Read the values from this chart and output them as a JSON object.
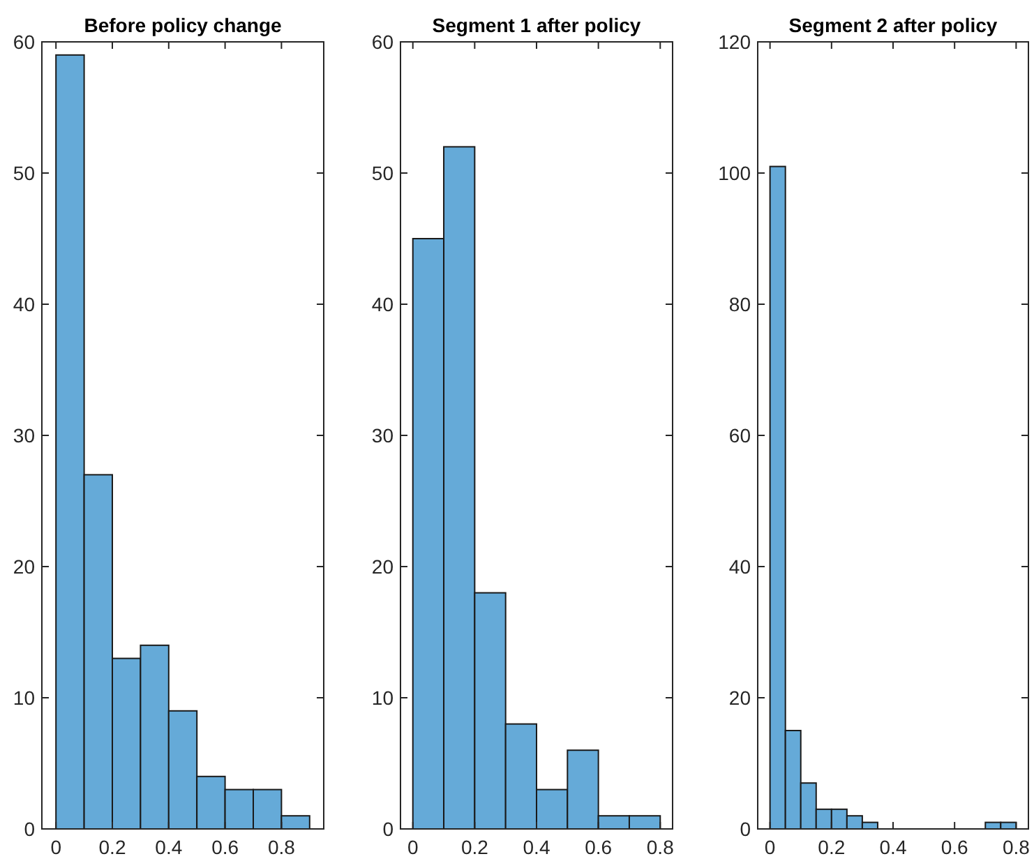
{
  "chart_data": [
    {
      "type": "histogram",
      "title": "Before policy change",
      "bins": [
        0,
        0.1,
        0.2,
        0.3,
        0.4,
        0.5,
        0.6,
        0.7,
        0.8,
        0.9
      ],
      "values": [
        59,
        27,
        13,
        14,
        9,
        4,
        3,
        3,
        1
      ],
      "color": "#65aad8",
      "xlim": [
        -0.05,
        0.95
      ],
      "xticks": [
        0,
        0.2,
        0.4,
        0.6,
        0.8
      ],
      "ylim": [
        0,
        60
      ],
      "yticks": [
        0,
        10,
        20,
        30,
        40,
        50,
        60
      ],
      "grid": false
    },
    {
      "type": "histogram",
      "title": "Segment 1 after policy",
      "bins": [
        0,
        0.1,
        0.2,
        0.3,
        0.4,
        0.5,
        0.6,
        0.7,
        0.8
      ],
      "values": [
        45,
        52,
        18,
        8,
        3,
        6,
        1,
        1
      ],
      "color": "#65aad8",
      "xlim": [
        -0.04,
        0.84
      ],
      "xticks": [
        0,
        0.2,
        0.4,
        0.6,
        0.8
      ],
      "ylim": [
        0,
        60
      ],
      "yticks": [
        0,
        10,
        20,
        30,
        40,
        50,
        60
      ],
      "grid": false
    },
    {
      "type": "histogram",
      "title": "Segment 2 after policy",
      "bins": [
        0,
        0.05,
        0.1,
        0.15,
        0.2,
        0.25,
        0.3,
        0.35,
        0.4,
        0.45,
        0.5,
        0.55,
        0.6,
        0.65,
        0.7,
        0.75,
        0.8
      ],
      "values": [
        101,
        15,
        7,
        3,
        3,
        2,
        1,
        0,
        0,
        0,
        0,
        0,
        0,
        0,
        1,
        1
      ],
      "color": "#65aad8",
      "xlim": [
        -0.04,
        0.84
      ],
      "xticks": [
        0,
        0.2,
        0.4,
        0.6,
        0.8
      ],
      "ylim": [
        0,
        120
      ],
      "yticks": [
        0,
        20,
        40,
        60,
        80,
        100,
        120
      ],
      "grid": false
    }
  ]
}
